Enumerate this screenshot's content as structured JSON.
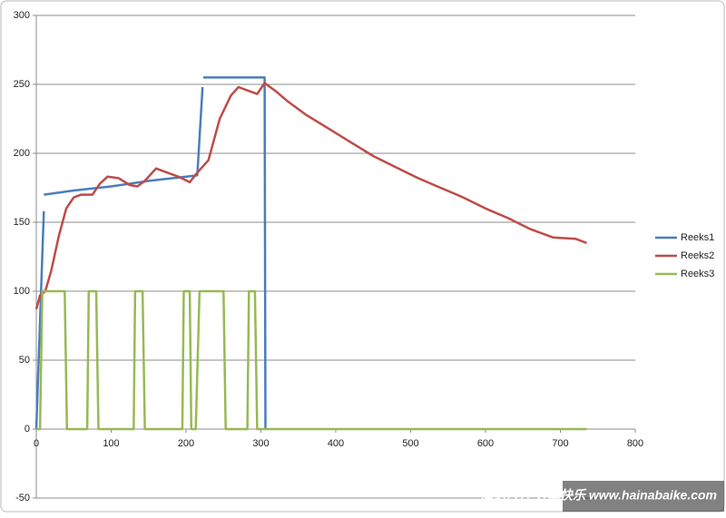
{
  "chart_data": {
    "type": "line",
    "xlim": [
      0,
      800
    ],
    "xticks": [
      0,
      100,
      200,
      300,
      400,
      500,
      600,
      700,
      800
    ],
    "ylim": [
      -50,
      300
    ],
    "yticks": [
      -50,
      0,
      50,
      100,
      150,
      200,
      250,
      300
    ],
    "grid": true,
    "legend": "right",
    "series": [
      {
        "name": "Reeks1",
        "color": "#4a7ebb",
        "x": [
          0,
          10,
          null,
          10,
          50,
          100,
          150,
          200,
          215,
          222,
          null,
          223,
          305,
          306
        ],
        "values": [
          0,
          158,
          null,
          170,
          173,
          176,
          180,
          183,
          184,
          248,
          null,
          255,
          255,
          0
        ]
      },
      {
        "name": "Reeks2",
        "color": "#be4b48",
        "x": [
          0,
          5,
          12,
          20,
          30,
          40,
          50,
          60,
          75,
          85,
          95,
          110,
          125,
          135,
          145,
          160,
          175,
          190,
          205,
          215,
          230,
          245,
          260,
          270,
          285,
          295,
          305,
          320,
          335,
          360,
          390,
          420,
          450,
          480,
          510,
          540,
          570,
          600,
          630,
          660,
          690,
          720,
          735
        ],
        "values": [
          87,
          97,
          100,
          115,
          140,
          160,
          168,
          170,
          170,
          178,
          183,
          182,
          177,
          176,
          180,
          189,
          186,
          183,
          179,
          186,
          195,
          225,
          242,
          248,
          245,
          243,
          251,
          245,
          238,
          228,
          218,
          208,
          198,
          190,
          182,
          175,
          168,
          160,
          153,
          145,
          139,
          138,
          135
        ]
      },
      {
        "name": "Reeks3",
        "color": "#98b954",
        "x": [
          0,
          5,
          8,
          38,
          41,
          68,
          70,
          80,
          83,
          130,
          132,
          142,
          145,
          195,
          197,
          205,
          207,
          213,
          218,
          250,
          253,
          282,
          284,
          292,
          295,
          735
        ],
        "values": [
          0,
          0,
          100,
          100,
          0,
          0,
          100,
          100,
          0,
          0,
          100,
          100,
          0,
          0,
          100,
          100,
          0,
          0,
          100,
          100,
          0,
          0,
          100,
          100,
          0,
          0
        ]
      }
    ]
  },
  "watermark": "海纳百客 分享快乐 www.hainabaike.com"
}
